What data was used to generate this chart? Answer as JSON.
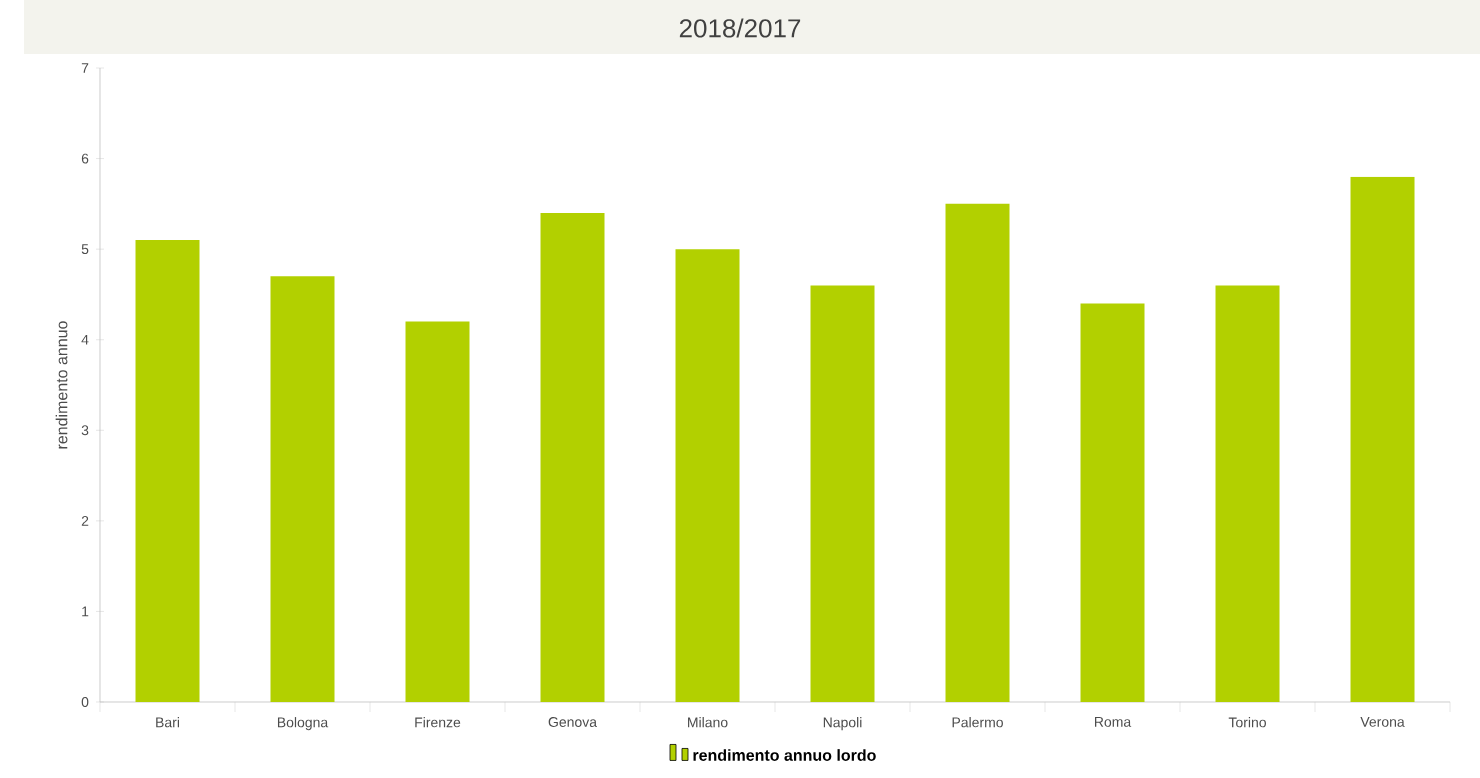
{
  "chart_data": {
    "type": "bar",
    "title": "2018/2017",
    "ylabel": "rendimento annuo",
    "categories": [
      "Bari",
      "Bologna",
      "Firenze",
      "Genova",
      "Milano",
      "Napoli",
      "Palermo",
      "Roma",
      "Torino",
      "Verona"
    ],
    "series": [
      {
        "name": "rendimento annuo lordo",
        "color": "#b2d000",
        "values": [
          5.1,
          4.7,
          4.2,
          5.4,
          5.0,
          4.6,
          5.5,
          4.4,
          4.6,
          5.8
        ]
      }
    ],
    "ylim": [
      0,
      7
    ],
    "yticks": [
      0,
      1,
      2,
      3,
      4,
      5,
      6,
      7
    ],
    "grid": false,
    "legend": "bottom"
  }
}
